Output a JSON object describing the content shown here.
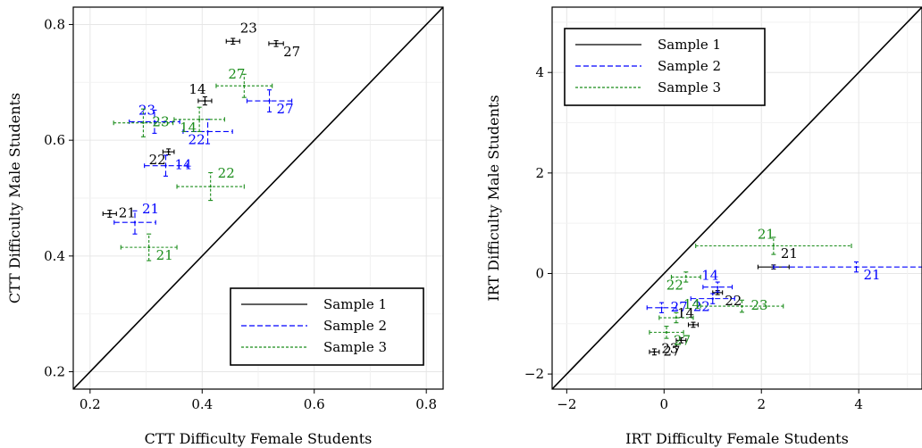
{
  "chart_data": [
    {
      "type": "scatter",
      "title": "",
      "xlabel": "CTT Difficulty Female Students",
      "ylabel": "CTT Difficulty Male Students",
      "xlim": [
        0.17,
        0.83
      ],
      "ylim": [
        0.17,
        0.83
      ],
      "xticks": [
        "0.2",
        "0.4",
        "0.6",
        "0.8"
      ],
      "yticks": [
        "0.2",
        "0.4",
        "0.6",
        "0.8"
      ],
      "grid": true,
      "legend_position": "bottom-right",
      "reference_line": "y = x",
      "series": [
        {
          "name": "Sample 1",
          "color": "#000000",
          "line": "solid",
          "points": [
            {
              "label": "23",
              "x": 0.455,
              "y": 0.771,
              "xerr": 0.012,
              "yerr": 0.005
            },
            {
              "label": "27",
              "x": 0.532,
              "y": 0.767,
              "xerr": 0.013,
              "yerr": 0.005
            },
            {
              "label": "14",
              "x": 0.405,
              "y": 0.668,
              "xerr": 0.012,
              "yerr": 0.007
            },
            {
              "label": "22",
              "x": 0.34,
              "y": 0.58,
              "xerr": 0.01,
              "yerr": 0.005
            },
            {
              "label": "21",
              "x": 0.235,
              "y": 0.473,
              "xerr": 0.012,
              "yerr": 0.006
            }
          ]
        },
        {
          "name": "Sample 2",
          "color": "#0000ff",
          "line": "dashed",
          "points": [
            {
              "label": "27",
              "x": 0.52,
              "y": 0.668,
              "xerr": 0.04,
              "yerr": 0.019
            },
            {
              "label": "23",
              "x": 0.315,
              "y": 0.632,
              "xerr": 0.045,
              "yerr": 0.02
            },
            {
              "label": "22",
              "x": 0.41,
              "y": 0.615,
              "xerr": 0.044,
              "yerr": 0.021
            },
            {
              "label": "14",
              "x": 0.335,
              "y": 0.556,
              "xerr": 0.038,
              "yerr": 0.018
            },
            {
              "label": "21",
              "x": 0.28,
              "y": 0.458,
              "xerr": 0.037,
              "yerr": 0.02
            }
          ]
        },
        {
          "name": "Sample 3",
          "color": "#1a8c1a",
          "line": "dotted",
          "points": [
            {
              "label": "27",
              "x": 0.475,
              "y": 0.694,
              "xerr": 0.05,
              "yerr": 0.02
            },
            {
              "label": "14",
              "x": 0.395,
              "y": 0.636,
              "xerr": 0.045,
              "yerr": 0.021
            },
            {
              "label": "23",
              "x": 0.295,
              "y": 0.63,
              "xerr": 0.053,
              "yerr": 0.024
            },
            {
              "label": "22",
              "x": 0.415,
              "y": 0.52,
              "xerr": 0.06,
              "yerr": 0.024
            },
            {
              "label": "21",
              "x": 0.305,
              "y": 0.415,
              "xerr": 0.05,
              "yerr": 0.023
            }
          ]
        }
      ],
      "legend": [
        "Sample 1",
        "Sample 2",
        "Sample 3"
      ]
    },
    {
      "type": "scatter",
      "title": "",
      "xlabel": "IRT Difficulty Female Students",
      "ylabel": "IRT Difficulty Male Students",
      "xlim": [
        -2.3,
        5.3
      ],
      "ylim": [
        -2.3,
        5.3
      ],
      "xticks": [
        "−2",
        "0",
        "2",
        "4"
      ],
      "yticks": [
        "−2",
        "0",
        "2",
        "4"
      ],
      "grid": true,
      "legend_position": "top-left",
      "reference_line": "y = x",
      "series": [
        {
          "name": "Sample 1",
          "color": "#000000",
          "line": "solid",
          "points": [
            {
              "label": "21",
              "x": 2.25,
              "y": 0.13,
              "xerr": 0.32,
              "yerr": 0.04
            },
            {
              "label": "22",
              "x": 1.1,
              "y": -0.38,
              "xerr": 0.1,
              "yerr": 0.04
            },
            {
              "label": "14",
              "x": 0.6,
              "y": -1.02,
              "xerr": 0.1,
              "yerr": 0.05
            },
            {
              "label": "23",
              "x": 0.35,
              "y": -1.33,
              "xerr": 0.1,
              "yerr": 0.05
            },
            {
              "label": "27",
              "x": -0.2,
              "y": -1.56,
              "xerr": 0.1,
              "yerr": 0.06
            }
          ]
        },
        {
          "name": "Sample 2",
          "color": "#0000ff",
          "line": "dashed",
          "points": [
            {
              "label": "21",
              "x": 3.95,
              "y": 0.13,
              "xerr": 1.7,
              "yerr": 0.1
            },
            {
              "label": "14",
              "x": 1.1,
              "y": -0.27,
              "xerr": 0.3,
              "yerr": 0.1
            },
            {
              "label": "22",
              "x": 1.0,
              "y": -0.5,
              "xerr": 0.45,
              "yerr": 0.1
            },
            {
              "label": "27",
              "x": -0.05,
              "y": -0.68,
              "xerr": 0.3,
              "yerr": 0.1
            }
          ]
        },
        {
          "name": "Sample 3",
          "color": "#1a8c1a",
          "line": "dotted",
          "points": [
            {
              "label": "21",
              "x": 2.25,
              "y": 0.55,
              "xerr": 1.6,
              "yerr": 0.17
            },
            {
              "label": "22",
              "x": 0.45,
              "y": -0.07,
              "xerr": 0.3,
              "yerr": 0.1
            },
            {
              "label": "23",
              "x": 1.6,
              "y": -0.65,
              "xerr": 0.85,
              "yerr": 0.12
            },
            {
              "label": "14",
              "x": 0.25,
              "y": -0.88,
              "xerr": 0.35,
              "yerr": 0.1
            },
            {
              "label": "27",
              "x": 0.05,
              "y": -1.17,
              "xerr": 0.35,
              "yerr": 0.12
            }
          ]
        }
      ],
      "legend": [
        "Sample 1",
        "Sample 2",
        "Sample 3"
      ]
    }
  ]
}
